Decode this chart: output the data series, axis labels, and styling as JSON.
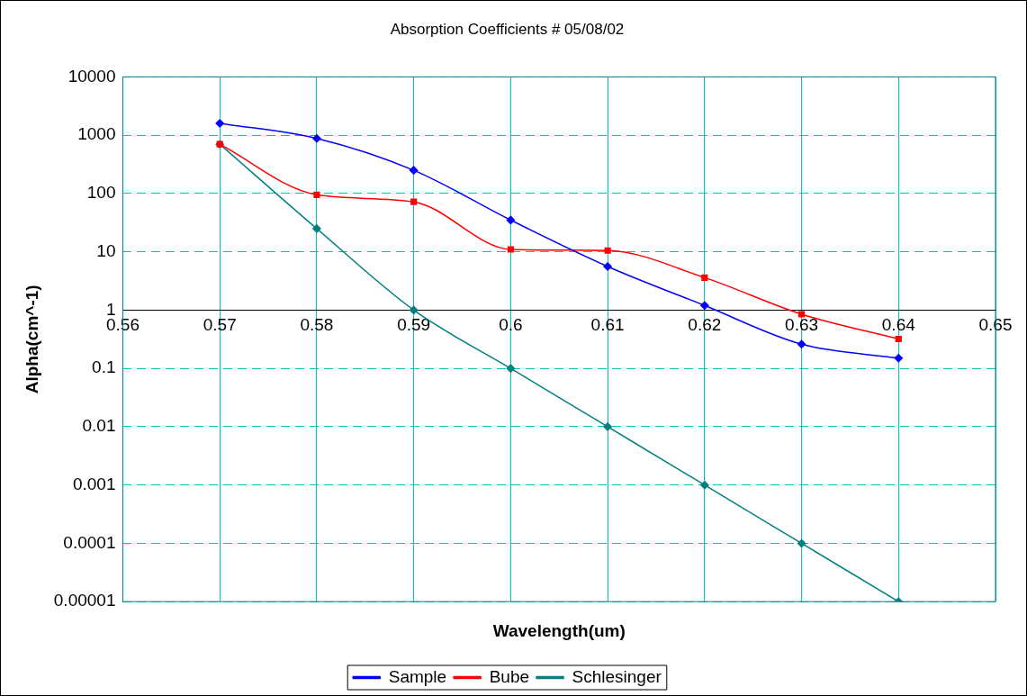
{
  "chart_data": {
    "type": "line",
    "title": "Absorption Coefficients # 05/08/02",
    "xlabel": "Wavelength(um)",
    "ylabel": "Alpha(cm^-1)",
    "x": [
      0.57,
      0.58,
      0.59,
      0.6,
      0.61,
      0.62,
      0.63,
      0.64
    ],
    "series": [
      {
        "name": "Sample",
        "color": "#0000ff",
        "marker": "diamond",
        "values": [
          1600,
          880,
          250,
          35,
          5.6,
          1.2,
          0.26,
          0.15
        ]
      },
      {
        "name": "Bube",
        "color": "#ff0000",
        "marker": "square",
        "values": [
          700,
          95,
          72,
          11,
          10.5,
          3.6,
          0.85,
          0.32
        ]
      },
      {
        "name": "Schlesinger",
        "color": "#008080",
        "marker": "diamond",
        "values": [
          700,
          25,
          1,
          0.1,
          0.01,
          0.001,
          0.0001,
          1e-05
        ]
      }
    ],
    "xlim": [
      0.56,
      0.65
    ],
    "xticks": [
      0.56,
      0.57,
      0.58,
      0.59,
      0.6,
      0.61,
      0.62,
      0.63,
      0.64,
      0.65
    ],
    "ylim": [
      1e-05,
      10000
    ],
    "yticks": [
      {
        "value": 1e-05,
        "label": "0.00001"
      },
      0.0001,
      0.001,
      0.01,
      0.1,
      1,
      10,
      100,
      1000,
      10000
    ],
    "log": "y",
    "grid": true,
    "legend": "bottom",
    "line_style": "solid"
  }
}
